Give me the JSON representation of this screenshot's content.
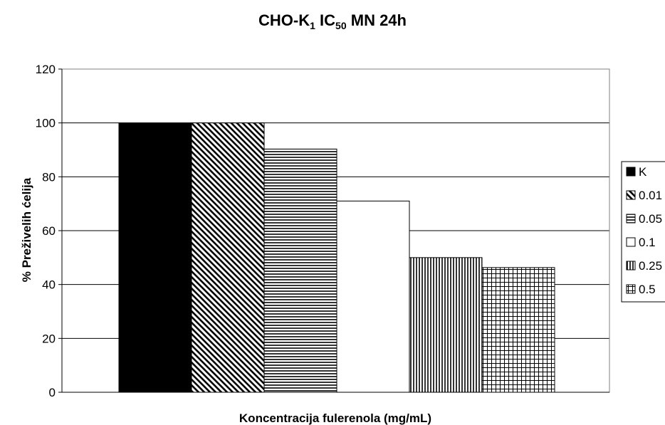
{
  "chart_data": {
    "type": "bar",
    "title_main": "CHO-K",
    "title_sub1": "1",
    "title_mid": " IC",
    "title_sub2": "50",
    "title_end": " MN 24h",
    "xlabel": "Koncentracija fulerenola (mg/mL)",
    "ylabel": "% Preživelih ćelija",
    "ylim": [
      0,
      120
    ],
    "yticks": [
      "0",
      "20",
      "40",
      "60",
      "80",
      "100",
      "120"
    ],
    "grid": true,
    "legend_position": "right",
    "series": [
      {
        "name": "K",
        "value": 100,
        "pattern": "solid"
      },
      {
        "name": "0.01",
        "value": 100,
        "pattern": "diagonal"
      },
      {
        "name": "0.05",
        "value": 90.3,
        "pattern": "horizontal"
      },
      {
        "name": "0.1",
        "value": 71,
        "pattern": "none"
      },
      {
        "name": "0.25",
        "value": 50,
        "pattern": "vertical"
      },
      {
        "name": "0.5",
        "value": 46.3,
        "pattern": "grid"
      }
    ]
  }
}
